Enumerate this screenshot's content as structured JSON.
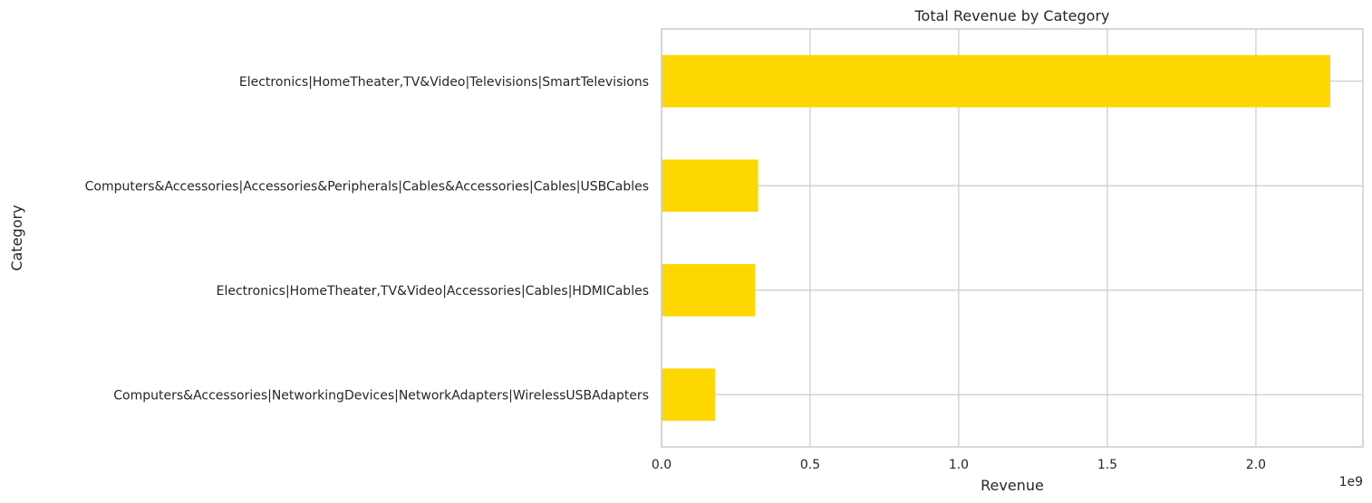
{
  "chart_data": {
    "type": "bar",
    "orientation": "horizontal",
    "title": "Total Revenue by Category",
    "xlabel": "Revenue",
    "ylabel": "Category",
    "x_offset_label": "1e9",
    "xlim": [
      0,
      2.36
    ],
    "xticks": [
      0.0,
      0.5,
      1.0,
      1.5,
      2.0
    ],
    "xtick_labels": [
      "0.0",
      "0.5",
      "1.0",
      "1.5",
      "2.0"
    ],
    "grid": true,
    "bar_color": "#ffd700",
    "categories": [
      "Electronics|HomeTheater,TV&Video|Televisions|SmartTelevisions",
      "Computers&Accessories|Accessories&Peripherals|Cables&Accessories|Cables|USBCables",
      "Electronics|HomeTheater,TV&Video|Accessories|Cables|HDMICables",
      "Computers&Accessories|NetworkingDevices|NetworkAdapters|WirelessUSBAdapters"
    ],
    "values": [
      2.25,
      0.325,
      0.315,
      0.18
    ],
    "value_unit_multiplier": 1000000000
  }
}
